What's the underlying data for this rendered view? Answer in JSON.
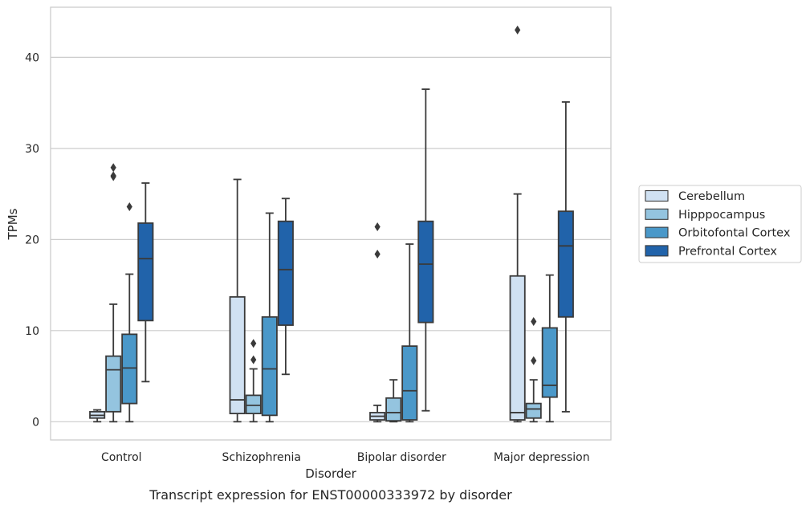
{
  "chart_data": {
    "type": "boxplot",
    "caption": "Transcript expression for ENST00000333972 by disorder",
    "xlabel": "Disorder",
    "ylabel": "TPMs",
    "ylim": [
      -2,
      45.5
    ],
    "yticks": [
      0,
      10,
      20,
      30,
      40
    ],
    "grid": "horizontal",
    "legend_position": "right-center",
    "categories": [
      "Control",
      "Schizophrenia",
      "Bipolar disorder",
      "Major depression"
    ],
    "series": [
      {
        "name": "Cerebellum",
        "color": "#d0e1f2",
        "boxes": [
          {
            "whisker_low": 0.0,
            "q1": 0.4,
            "median": 0.7,
            "q3": 1.1,
            "whisker_high": 1.3,
            "outliers": []
          },
          {
            "whisker_low": 0.0,
            "q1": 0.9,
            "median": 2.4,
            "q3": 13.7,
            "whisker_high": 26.6,
            "outliers": []
          },
          {
            "whisker_low": 0.0,
            "q1": 0.2,
            "median": 0.6,
            "q3": 1.0,
            "whisker_high": 1.8,
            "outliers": [
              18.4,
              21.4
            ]
          },
          {
            "whisker_low": 0.0,
            "q1": 0.2,
            "median": 1.0,
            "q3": 16.0,
            "whisker_high": 25.0,
            "outliers": [
              43.0
            ]
          }
        ]
      },
      {
        "name": "Hipppocampus",
        "color": "#94c4df",
        "boxes": [
          {
            "whisker_low": 0.0,
            "q1": 1.1,
            "median": 5.7,
            "q3": 7.2,
            "whisker_high": 12.9,
            "outliers": [
              26.9,
              27.0,
              27.9
            ]
          },
          {
            "whisker_low": 0.0,
            "q1": 0.9,
            "median": 1.8,
            "q3": 2.9,
            "whisker_high": 5.8,
            "outliers": [
              6.8,
              8.6
            ]
          },
          {
            "whisker_low": 0.0,
            "q1": 0.1,
            "median": 1.0,
            "q3": 2.6,
            "whisker_high": 4.6,
            "outliers": []
          },
          {
            "whisker_low": 0.0,
            "q1": 0.4,
            "median": 1.4,
            "q3": 2.0,
            "whisker_high": 4.6,
            "outliers": [
              6.7,
              11.0
            ]
          }
        ]
      },
      {
        "name": "Orbitofontal Cortex",
        "color": "#4a98c9",
        "boxes": [
          {
            "whisker_low": 0.0,
            "q1": 2.0,
            "median": 5.9,
            "q3": 9.6,
            "whisker_high": 16.2,
            "outliers": [
              23.6
            ]
          },
          {
            "whisker_low": 0.0,
            "q1": 0.7,
            "median": 5.8,
            "q3": 11.5,
            "whisker_high": 22.9,
            "outliers": []
          },
          {
            "whisker_low": 0.0,
            "q1": 0.2,
            "median": 3.4,
            "q3": 8.3,
            "whisker_high": 19.5,
            "outliers": []
          },
          {
            "whisker_low": 0.0,
            "q1": 2.7,
            "median": 4.0,
            "q3": 10.3,
            "whisker_high": 16.1,
            "outliers": []
          }
        ]
      },
      {
        "name": "Prefrontal Cortex",
        "color": "#2163aa",
        "boxes": [
          {
            "whisker_low": 4.4,
            "q1": 11.1,
            "median": 17.9,
            "q3": 21.8,
            "whisker_high": 26.2,
            "outliers": []
          },
          {
            "whisker_low": 5.2,
            "q1": 10.6,
            "median": 16.7,
            "q3": 22.0,
            "whisker_high": 24.5,
            "outliers": []
          },
          {
            "whisker_low": 1.2,
            "q1": 10.9,
            "median": 17.3,
            "q3": 22.0,
            "whisker_high": 36.5,
            "outliers": []
          },
          {
            "whisker_low": 1.1,
            "q1": 11.5,
            "median": 19.3,
            "q3": 23.1,
            "whisker_high": 35.1,
            "outliers": []
          }
        ]
      }
    ]
  }
}
